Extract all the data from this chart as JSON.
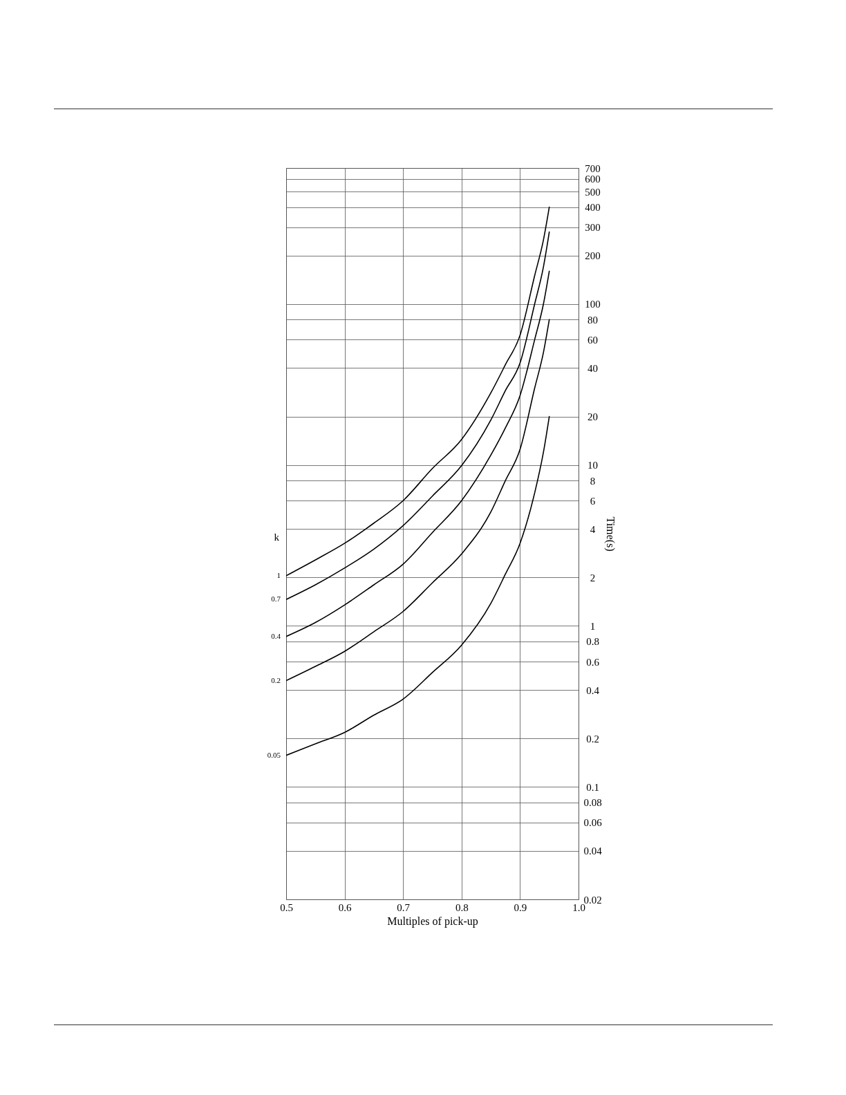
{
  "chart_data": {
    "type": "line",
    "xlabel": "Multiples of pick-up",
    "ylabel": "Time(s)",
    "legend_title": "k",
    "x": [
      0.5,
      0.55,
      0.6,
      0.65,
      0.7,
      0.75,
      0.8,
      0.85,
      0.875,
      0.9,
      0.925,
      0.94,
      0.95
    ],
    "series": [
      {
        "name": "1",
        "color": "#000000",
        "values": [
          2.05,
          2.57,
          3.26,
          4.35,
          6.0,
          9.5,
          14.4,
          28,
          42,
          64,
          150,
          250,
          400
        ]
      },
      {
        "name": "0.7",
        "color": "#000000",
        "values": [
          1.46,
          1.8,
          2.29,
          3.0,
          4.2,
          6.4,
          9.9,
          19,
          29,
          43,
          100,
          170,
          280
        ]
      },
      {
        "name": "0.4",
        "color": "#000000",
        "values": [
          0.86,
          1.05,
          1.35,
          1.8,
          2.42,
          3.8,
          6.0,
          11.5,
          17,
          27,
          60,
          100,
          160
        ]
      },
      {
        "name": "0.2",
        "color": "#000000",
        "values": [
          0.457,
          0.56,
          0.695,
          0.92,
          1.23,
          1.85,
          2.8,
          5.1,
          8,
          12.5,
          30,
          50,
          80
        ]
      },
      {
        "name": "0.05",
        "color": "#000000",
        "values": [
          0.157,
          0.185,
          0.218,
          0.279,
          0.351,
          0.513,
          0.76,
          1.38,
          2.1,
          3.26,
          6.7,
          12,
          20
        ]
      }
    ],
    "xlim": [
      0.5,
      1.0
    ],
    "xticks": [
      0.5,
      0.6,
      0.7,
      0.8,
      0.9,
      {
        "value": 1.0,
        "label": "1.0"
      }
    ],
    "ylim": [
      0.02,
      700
    ],
    "yticks": [
      0.02,
      0.04,
      0.06,
      0.08,
      0.1,
      0.2,
      0.4,
      0.6,
      0.8,
      1,
      2,
      4,
      6,
      8,
      10,
      20,
      40,
      60,
      80,
      100,
      200,
      300,
      400,
      500,
      600,
      700
    ],
    "log": true,
    "grid": true,
    "legend": false
  }
}
